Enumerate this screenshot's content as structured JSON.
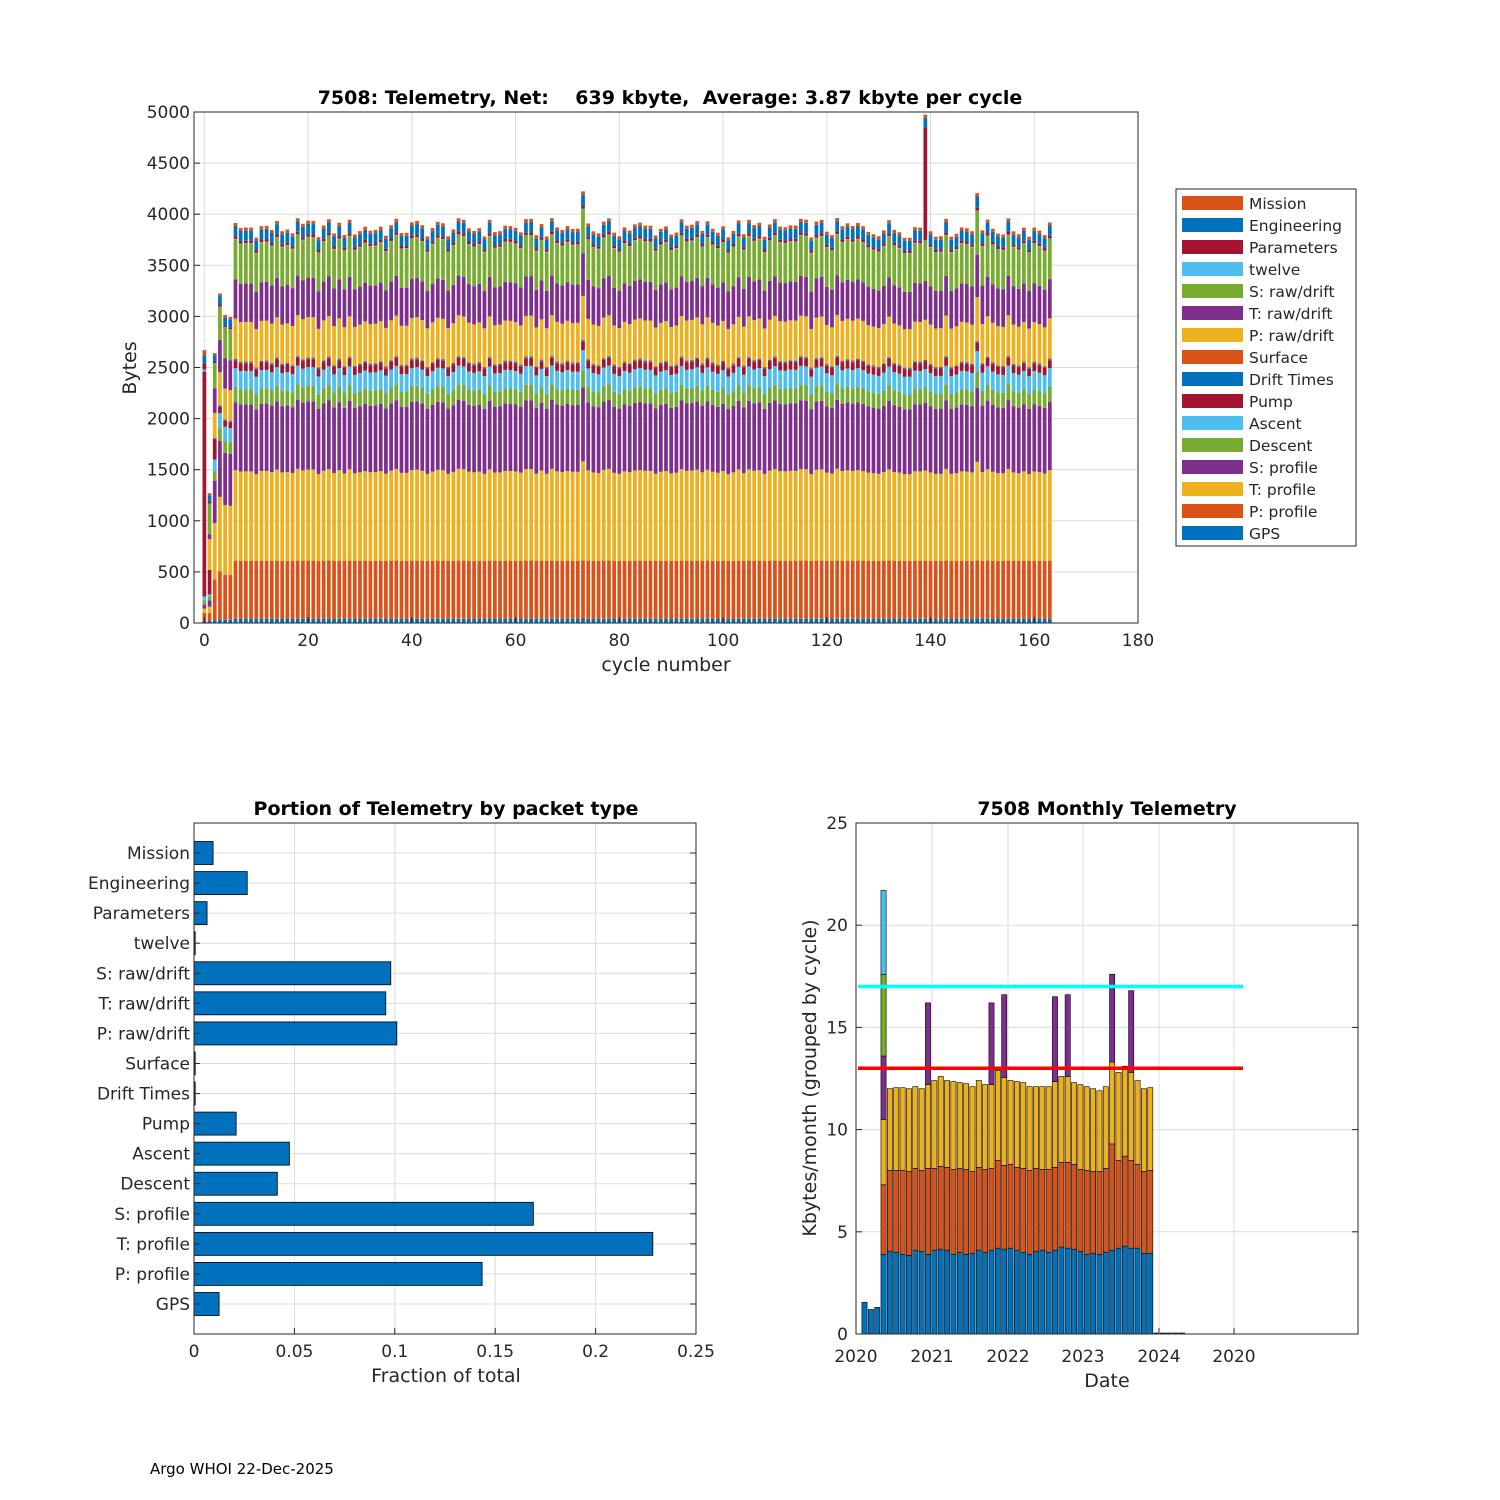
{
  "footer": "Argo WHOI 22-Dec-2025",
  "packet_types": [
    "GPS",
    "P: profile",
    "T: profile",
    "S: profile",
    "Descent",
    "Ascent",
    "Pump",
    "Drift Times",
    "Surface",
    "P: raw/drift",
    "T: raw/drift",
    "S: raw/drift",
    "twelve",
    "Parameters",
    "Engineering",
    "Mission"
  ],
  "colors": {
    "GPS": "#0072BD",
    "P: profile": "#D95319",
    "T: profile": "#EDB120",
    "S: profile": "#7E2F8E",
    "Descent": "#77AC30",
    "Ascent": "#4DBEEE",
    "Pump": "#A2142F",
    "Drift Times": "#0072BD",
    "Surface": "#D95319",
    "P: raw/drift": "#EDB120",
    "T: raw/drift": "#7E2F8E",
    "S: raw/drift": "#77AC30",
    "twelve": "#4DBEEE",
    "Parameters": "#A2142F",
    "Engineering": "#0072BD",
    "Mission": "#D95319",
    "fraction_bar": "#0072BD",
    "cyan_line": "#00FFFF",
    "red_line": "#FF0000"
  },
  "chart_data": [
    {
      "id": "telemetry_per_cycle",
      "type": "bar",
      "stacked": true,
      "title": "7508: Telemetry, Net:    639 kbyte,  Average: 3.87 kbyte per cycle",
      "xlabel": "cycle number",
      "ylabel": "Bytes",
      "xlim": [
        -2,
        180
      ],
      "ylim": [
        0,
        5000
      ],
      "xticks": [
        0,
        20,
        40,
        60,
        80,
        100,
        120,
        140,
        160,
        180
      ],
      "yticks": [
        0,
        500,
        1000,
        1500,
        2000,
        2500,
        3000,
        3500,
        4000,
        4500,
        5000
      ],
      "cycles": {
        "first": 0,
        "last": 163
      },
      "legend_order_top_to_bottom": [
        "Mission",
        "Engineering",
        "Parameters",
        "twelve",
        "S: raw/drift",
        "T: raw/drift",
        "P: raw/drift",
        "Surface",
        "Drift Times",
        "Pump",
        "Ascent",
        "Descent",
        "S: profile",
        "T: profile",
        "P: profile",
        "GPS"
      ],
      "typical_cycle_bytes": {
        "GPS": 40,
        "P: profile": 570,
        "T: profile": 880,
        "S: profile": 660,
        "Descent": 150,
        "Ascent": 180,
        "Pump": 75,
        "Drift Times": 10,
        "Surface": 8,
        "P: raw/drift": 390,
        "T: raw/drift": 380,
        "S: raw/drift": 390,
        "twelve": 5,
        "Parameters": 25,
        "Engineering": 100,
        "Mission": 30
      },
      "special_cycles": [
        {
          "cycle": 0,
          "total": 2650,
          "note": "mostly Pump"
        },
        {
          "cycle": 1,
          "total": 1270
        },
        {
          "cycle": 2,
          "total": 2450
        },
        {
          "cycle": 3,
          "total": 3230
        },
        {
          "cycle": 4,
          "total": 3020
        },
        {
          "cycle": 5,
          "total": 3000
        },
        {
          "cycle": 73,
          "total": 4280
        },
        {
          "cycle": 139,
          "total": 4960,
          "note": "Parameters spike"
        },
        {
          "cycle": 149,
          "total": 4260
        }
      ]
    },
    {
      "id": "fraction_by_packet_type",
      "type": "bar",
      "orientation": "horizontal",
      "title": "Portion of Telemetry by packet type",
      "xlabel": "Fraction of total",
      "xlim": [
        0,
        0.25
      ],
      "xticks": [
        0,
        0.05,
        0.1,
        0.15,
        0.2,
        0.25
      ],
      "xtick_labels": [
        "0",
        "0.05",
        "0.1",
        "0.15",
        "0.2",
        "0.25"
      ],
      "categories": [
        "GPS",
        "P: profile",
        "T: profile",
        "S: profile",
        "Descent",
        "Ascent",
        "Pump",
        "Drift Times",
        "Surface",
        "P: raw/drift",
        "T: raw/drift",
        "S: raw/drift",
        "twelve",
        "Parameters",
        "Engineering",
        "Mission"
      ],
      "values": [
        0.0125,
        0.1435,
        0.2285,
        0.169,
        0.0415,
        0.0475,
        0.021,
        0.0005,
        0.0005,
        0.101,
        0.0955,
        0.098,
        0.0005,
        0.0065,
        0.0265,
        0.0095
      ]
    },
    {
      "id": "monthly_telemetry",
      "type": "bar",
      "stacked": true,
      "title": "7508 Monthly Telemetry",
      "xlabel": "Date",
      "ylabel": "Kbytes/month (grouped by cycle)",
      "ylim": [
        0,
        25
      ],
      "yticks": [
        0,
        5,
        10,
        15,
        20,
        25
      ],
      "xtick_labels": [
        "2020",
        "2021",
        "2022",
        "2023",
        "2024",
        "2020"
      ],
      "hlines": [
        {
          "y": 17,
          "color": "cyan"
        },
        {
          "y": 13,
          "color": "red"
        }
      ],
      "months": [
        {
          "total": 1.55,
          "parts": [
            1.55
          ]
        },
        {
          "total": 1.2,
          "parts": [
            1.2
          ]
        },
        {
          "total": 1.3,
          "parts": [
            1.3
          ]
        },
        {
          "total": 21.7,
          "parts": [
            3.9,
            3.4,
            3.2,
            3.1,
            4.0,
            4.1
          ]
        },
        {
          "total": 12.0,
          "parts": [
            4.05,
            3.95,
            4.0
          ]
        },
        {
          "total": 12.05,
          "parts": [
            4.0,
            4.0,
            4.05
          ]
        },
        {
          "total": 12.05,
          "parts": [
            3.9,
            4.1,
            4.05
          ]
        },
        {
          "total": 12.0,
          "parts": [
            3.85,
            4.1,
            4.05
          ]
        },
        {
          "total": 12.1,
          "parts": [
            4.1,
            4.0,
            4.0
          ]
        },
        {
          "total": 12.0,
          "parts": [
            4.05,
            3.95,
            4.0
          ]
        },
        {
          "total": 16.2,
          "parts": [
            3.9,
            4.2,
            4.1,
            4.0
          ]
        },
        {
          "total": 12.4,
          "parts": [
            4.1,
            4.0,
            4.3
          ]
        },
        {
          "total": 12.6,
          "parts": [
            4.15,
            4.05,
            4.4
          ]
        },
        {
          "total": 12.4,
          "parts": [
            4.1,
            4.05,
            4.25
          ]
        },
        {
          "total": 12.35,
          "parts": [
            3.9,
            4.15,
            4.3
          ]
        },
        {
          "total": 12.3,
          "parts": [
            4.0,
            4.1,
            4.2
          ]
        },
        {
          "total": 12.25,
          "parts": [
            3.9,
            4.15,
            4.2
          ]
        },
        {
          "total": 12.1,
          "parts": [
            3.95,
            4.0,
            4.15
          ]
        },
        {
          "total": 12.4,
          "parts": [
            4.1,
            4.05,
            4.25
          ]
        },
        {
          "total": 12.2,
          "parts": [
            4.0,
            4.05,
            4.15
          ]
        },
        {
          "total": 16.2,
          "parts": [
            4.1,
            4.0,
            4.1,
            4.0
          ]
        },
        {
          "total": 12.9,
          "parts": [
            4.2,
            4.3,
            4.4
          ]
        },
        {
          "total": 16.6,
          "parts": [
            4.15,
            4.1,
            4.3,
            4.05
          ]
        },
        {
          "total": 12.4,
          "parts": [
            4.2,
            4.1,
            4.1
          ]
        },
        {
          "total": 12.35,
          "parts": [
            4.1,
            4.05,
            4.2
          ]
        },
        {
          "total": 12.3,
          "parts": [
            4.0,
            4.1,
            4.2
          ]
        },
        {
          "total": 12.1,
          "parts": [
            3.9,
            4.1,
            4.1
          ]
        },
        {
          "total": 12.1,
          "parts": [
            4.05,
            4.05,
            4.0
          ]
        },
        {
          "total": 12.1,
          "parts": [
            4.1,
            3.95,
            4.05
          ]
        },
        {
          "total": 12.1,
          "parts": [
            4.0,
            4.05,
            4.05
          ]
        },
        {
          "total": 16.5,
          "parts": [
            4.1,
            4.05,
            4.2,
            4.15
          ]
        },
        {
          "total": 12.6,
          "parts": [
            4.25,
            4.15,
            4.2
          ]
        },
        {
          "total": 16.6,
          "parts": [
            4.2,
            4.2,
            4.2,
            4.0
          ]
        },
        {
          "total": 12.3,
          "parts": [
            4.15,
            4.15,
            4.0
          ]
        },
        {
          "total": 12.2,
          "parts": [
            4.05,
            4.0,
            4.15
          ]
        },
        {
          "total": 12.1,
          "parts": [
            3.9,
            4.1,
            4.1
          ]
        },
        {
          "total": 12.0,
          "parts": [
            3.95,
            4.0,
            4.05
          ]
        },
        {
          "total": 11.9,
          "parts": [
            3.9,
            4.05,
            3.95
          ]
        },
        {
          "total": 12.1,
          "parts": [
            4.0,
            4.1,
            4.0
          ]
        },
        {
          "total": 17.6,
          "parts": [
            4.1,
            5.2,
            4.0,
            4.3
          ]
        },
        {
          "total": 12.8,
          "parts": [
            4.2,
            4.3,
            4.3
          ]
        },
        {
          "total": 13.1,
          "parts": [
            4.3,
            4.4,
            4.4
          ]
        },
        {
          "total": 16.8,
          "parts": [
            4.2,
            4.3,
            4.3,
            4.0
          ]
        },
        {
          "total": 12.4,
          "parts": [
            4.2,
            4.1,
            4.1
          ]
        },
        {
          "total": 12.0,
          "parts": [
            3.95,
            4.0,
            4.05
          ]
        },
        {
          "total": 12.05,
          "parts": [
            3.95,
            4.05,
            4.05
          ]
        },
        {
          "total": 0.05,
          "parts": [
            0.05
          ]
        },
        {
          "total": 0.05,
          "parts": [
            0.05
          ]
        },
        {
          "total": 0.05,
          "parts": [
            0.05
          ]
        },
        {
          "total": 0.05,
          "parts": [
            0.05
          ]
        },
        {
          "total": 0.05,
          "parts": [
            0.05
          ]
        }
      ],
      "stack_colors": [
        "#0072BD",
        "#D95319",
        "#EDB120",
        "#7E2F8E",
        "#77AC30",
        "#4DBEEE",
        "#A2142F"
      ]
    }
  ]
}
